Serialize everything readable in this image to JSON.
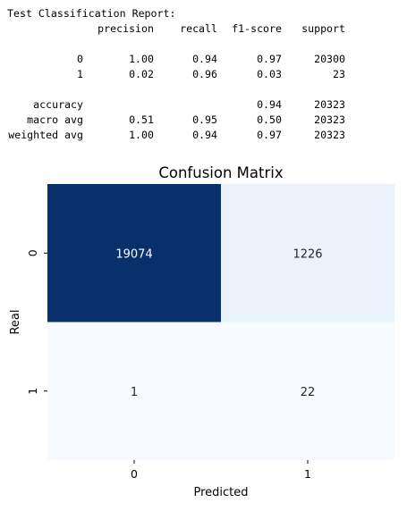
{
  "report": {
    "title": "Test Classification Report:",
    "headers": [
      "precision",
      "recall",
      "f1-score",
      "support"
    ],
    "class_rows": [
      {
        "label": "0",
        "precision": "1.00",
        "recall": "0.94",
        "f1": "0.97",
        "support": "20300"
      },
      {
        "label": "1",
        "precision": "0.02",
        "recall": "0.96",
        "f1": "0.03",
        "support": "23"
      }
    ],
    "summary_rows": [
      {
        "label": "accuracy",
        "precision": "",
        "recall": "",
        "f1": "0.94",
        "support": "20323"
      },
      {
        "label": "macro avg",
        "precision": "0.51",
        "recall": "0.95",
        "f1": "0.50",
        "support": "20323"
      },
      {
        "label": "weighted avg",
        "precision": "1.00",
        "recall": "0.94",
        "f1": "0.97",
        "support": "20323"
      }
    ]
  },
  "chart_data": {
    "type": "heatmap",
    "title": "Confusion Matrix",
    "xlabel": "Predicted",
    "ylabel": "Real",
    "x_categories": [
      "0",
      "1"
    ],
    "y_categories": [
      "0",
      "1"
    ],
    "values": [
      [
        19074,
        1226
      ],
      [
        1,
        22
      ]
    ],
    "colormap": "Blues",
    "colorbar": false,
    "colors": {
      "high": "#08306b",
      "mid_low": "#e8f1fb",
      "low": "#f7fbff"
    }
  }
}
